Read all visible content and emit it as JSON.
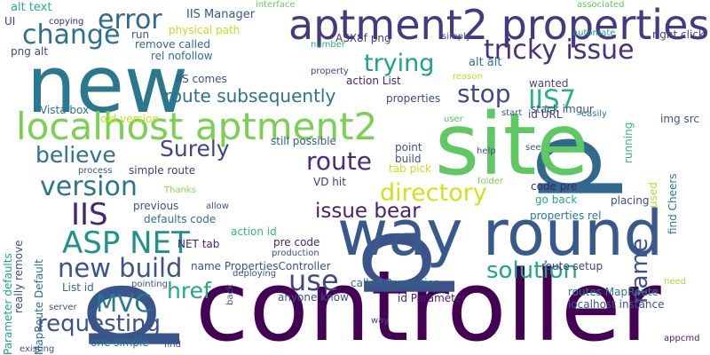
{
  "words": [
    {
      "text": "controller",
      "color": "#440154"
    },
    {
      "text": "p",
      "color": "#3b528b"
    },
    {
      "text": "p",
      "color": "#39568c"
    },
    {
      "text": "p",
      "color": "#31688e"
    },
    {
      "text": "site",
      "color": "#5ec962"
    },
    {
      "text": "new",
      "color": "#2a788e"
    },
    {
      "text": "way round",
      "color": "#38598c"
    },
    {
      "text": "aptment2 properties",
      "color": "#443983"
    },
    {
      "text": "localhost aptment2",
      "color": "#7ad151"
    },
    {
      "text": "error",
      "color": "#31688e"
    },
    {
      "text": "change",
      "color": "#2c718e"
    },
    {
      "text": "tricky issue",
      "color": "#46327e"
    },
    {
      "text": "trying",
      "color": "#1fa187"
    },
    {
      "text": "stop",
      "color": "#3e4a89"
    },
    {
      "text": "IIS7",
      "color": "#2ab07f"
    },
    {
      "text": "Surely",
      "color": "#414487"
    },
    {
      "text": "believe",
      "color": "#2c728e"
    },
    {
      "text": "route",
      "color": "#472d7b"
    },
    {
      "text": "directory",
      "color": "#d2e21b"
    },
    {
      "text": "version",
      "color": "#2b758e"
    },
    {
      "text": "IIS",
      "color": "#482475"
    },
    {
      "text": "issue bear",
      "color": "#481f70"
    },
    {
      "text": "name",
      "color": "#3b528b"
    },
    {
      "text": "ASP NET",
      "color": "#20928c"
    },
    {
      "text": "new build",
      "color": "#3a548c"
    },
    {
      "text": "href",
      "color": "#22a884"
    },
    {
      "text": "use",
      "color": "#3e4989"
    },
    {
      "text": "solution",
      "color": "#22a785"
    },
    {
      "text": "MVC",
      "color": "#2a788e"
    },
    {
      "text": "requesting",
      "color": "#3b528b"
    },
    {
      "text": "route subsequently",
      "color": "#2c728e"
    },
    {
      "text": "alt text",
      "color": "#29af7f"
    },
    {
      "text": "IIS Manager",
      "color": "#3a548c"
    },
    {
      "text": "interface",
      "color": "#6ece58"
    },
    {
      "text": "associated",
      "color": "#5ec962"
    },
    {
      "text": "UI",
      "color": "#443a83"
    },
    {
      "text": "copying",
      "color": "#482475"
    },
    {
      "text": "png alt",
      "color": "#3f4889"
    },
    {
      "text": "run",
      "color": "#3b528b"
    },
    {
      "text": "physical path",
      "color": "#bddf26"
    },
    {
      "text": "ASX8f png",
      "color": "#443983"
    },
    {
      "text": "simply",
      "color": "#3b528b"
    },
    {
      "text": "automate",
      "color": "#1fa187"
    },
    {
      "text": "right click",
      "color": "#3f4889"
    },
    {
      "text": "remove called",
      "color": "#31688e"
    },
    {
      "text": "number",
      "color": "#2ab07f"
    },
    {
      "text": "rel nofollow",
      "color": "#2c728e"
    },
    {
      "text": "property",
      "color": "#414487"
    },
    {
      "text": "reason",
      "color": "#bddf26"
    },
    {
      "text": "alt alt",
      "color": "#2a788e"
    },
    {
      "text": "wanted",
      "color": "#404588"
    },
    {
      "text": "IIS comes",
      "color": "#3b528b"
    },
    {
      "text": "action List",
      "color": "#481f70"
    },
    {
      "text": "properties",
      "color": "#3e4989"
    },
    {
      "text": "stack imgur",
      "color": "#3b528b"
    },
    {
      "text": "running",
      "color": "#35b779"
    },
    {
      "text": "id URL",
      "color": "#433e85"
    },
    {
      "text": "easily",
      "color": "#2a788e"
    },
    {
      "text": "img src",
      "color": "#3b528b"
    },
    {
      "text": "Vista box",
      "color": "#2c728e"
    },
    {
      "text": "user",
      "color": "#52c569"
    },
    {
      "text": "start",
      "color": "#3b528b"
    },
    {
      "text": "old version",
      "color": "#c8e020"
    },
    {
      "text": "still possible",
      "color": "#38598c"
    },
    {
      "text": "point",
      "color": "#3a548c"
    },
    {
      "text": "see",
      "color": "#3b528b"
    },
    {
      "text": "find Cheers",
      "color": "#2a788e"
    },
    {
      "text": "build",
      "color": "#3b528b"
    },
    {
      "text": "help",
      "color": "#3e4989"
    },
    {
      "text": "used",
      "color": "#b5de2b"
    },
    {
      "text": "process",
      "color": "#3b528b"
    },
    {
      "text": "simple route",
      "color": "#433e85"
    },
    {
      "text": "tab pick",
      "color": "#c8e020"
    },
    {
      "text": "folder",
      "color": "#7ad151"
    },
    {
      "text": "VD hit",
      "color": "#46327e"
    },
    {
      "text": "code pre",
      "color": "#481f70"
    },
    {
      "text": "really remove",
      "color": "#3e4989"
    },
    {
      "text": "Thanks",
      "color": "#8fd744"
    },
    {
      "text": "previous",
      "color": "#3b528b"
    },
    {
      "text": "allow",
      "color": "#3b528b"
    },
    {
      "text": "go back",
      "color": "#22a884"
    },
    {
      "text": "placing",
      "color": "#3e4989"
    },
    {
      "text": "defaults code",
      "color": "#2c728e"
    },
    {
      "text": "properties rel",
      "color": "#2a788e"
    },
    {
      "text": "Parameter defaults",
      "color": "#1fa187"
    },
    {
      "text": "MapRoute Default",
      "color": "#2c728e"
    },
    {
      "text": "NET tab",
      "color": "#482475"
    },
    {
      "text": "action id",
      "color": "#35b779"
    },
    {
      "text": "pre code",
      "color": "#481f70"
    },
    {
      "text": "name PropertiesController",
      "color": "#3a548c"
    },
    {
      "text": "route setup",
      "color": "#433e85"
    },
    {
      "text": "List id",
      "color": "#31688e"
    },
    {
      "text": "deploying",
      "color": "#3b528b"
    },
    {
      "text": "need",
      "color": "#a0da39"
    },
    {
      "text": "production",
      "color": "#3b528b"
    },
    {
      "text": "back",
      "color": "#3b528b"
    },
    {
      "text": "pointing",
      "color": "#3b528b"
    },
    {
      "text": "anyone know",
      "color": "#3b528b"
    },
    {
      "text": "called Properties",
      "color": "#31688e"
    },
    {
      "text": "routes MapRoute",
      "color": "#2a788e"
    },
    {
      "text": "localhost instance",
      "color": "#3b528b"
    },
    {
      "text": "server",
      "color": "#3b528b"
    },
    {
      "text": "id Parameter",
      "color": "#481f70"
    },
    {
      "text": "way",
      "color": "#3e4989"
    },
    {
      "text": "one simple",
      "color": "#2a788e"
    },
    {
      "text": "find",
      "color": "#3b528b"
    },
    {
      "text": "appcmd",
      "color": "#481f70"
    },
    {
      "text": "existing",
      "color": "#3b528b"
    }
  ]
}
